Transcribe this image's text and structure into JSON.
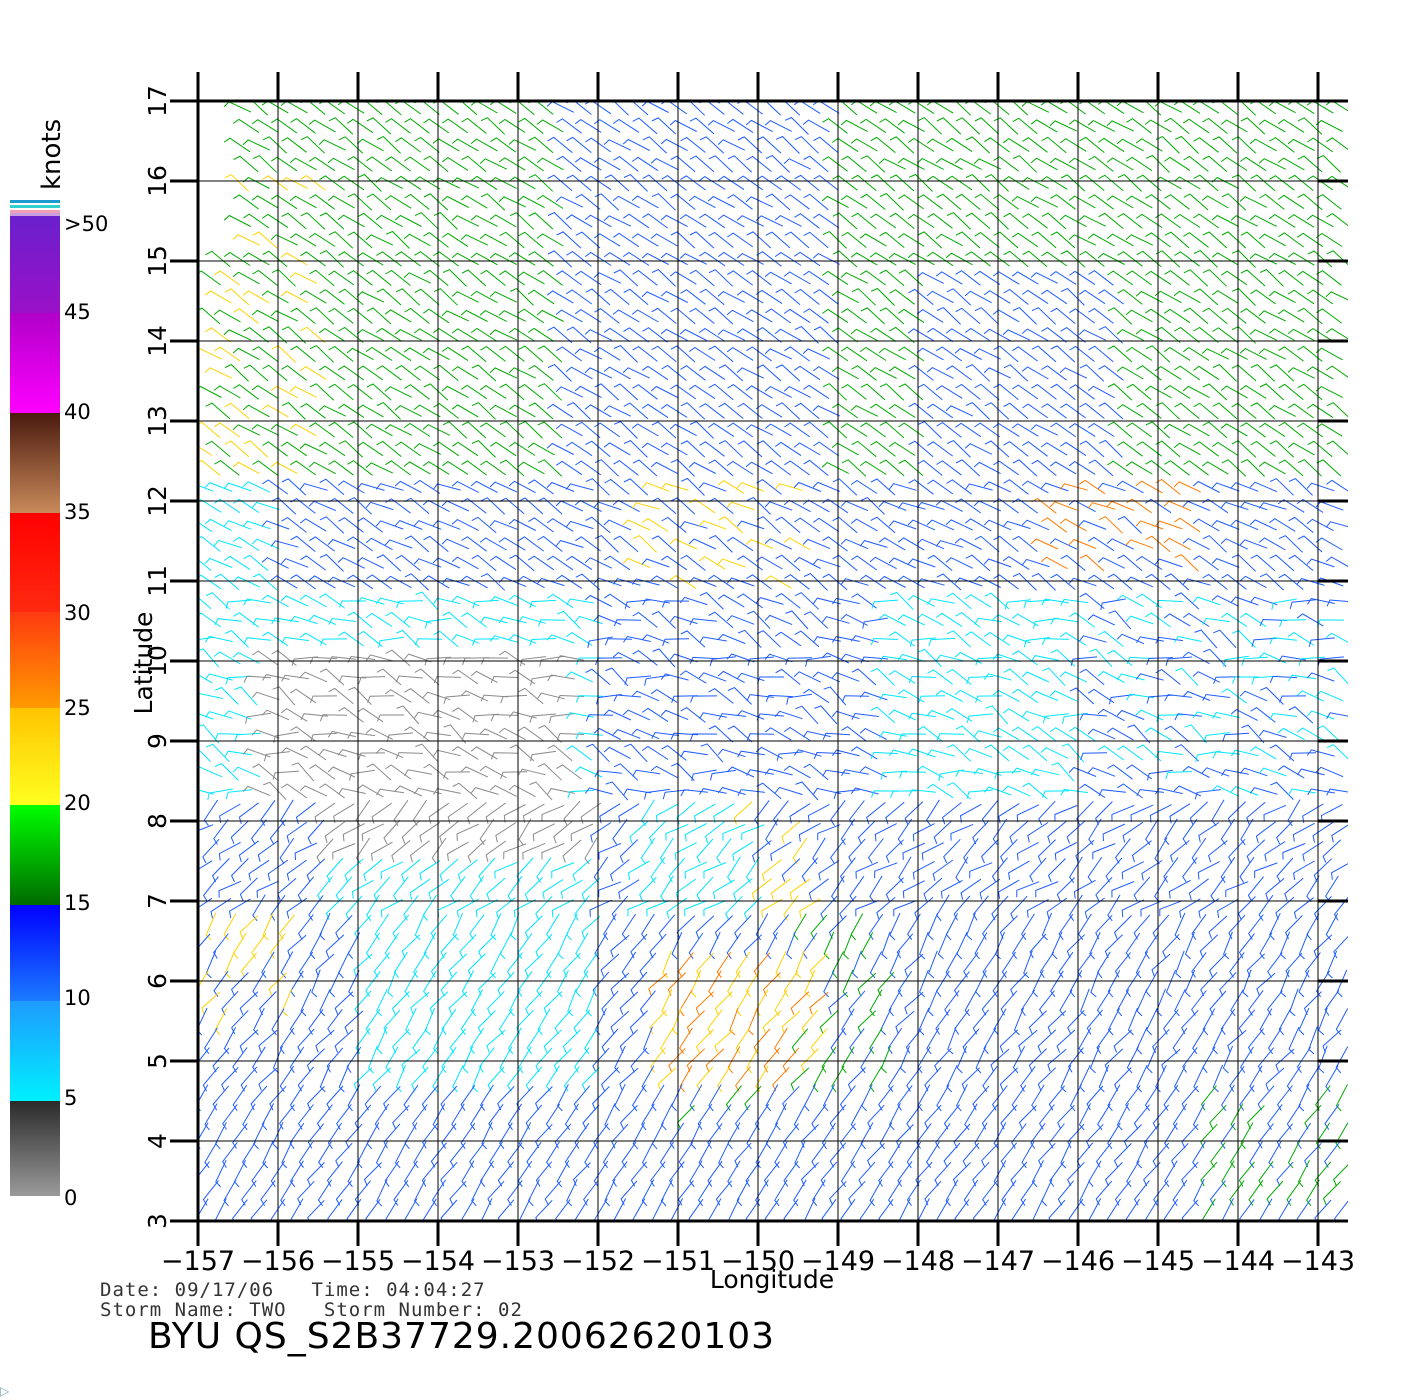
{
  "map": {
    "region": {
      "lon_min": -157,
      "lon_max": -143,
      "lat_min": 3,
      "lat_max": 17
    },
    "xlabel": "Longitude",
    "ylabel": "Latitude",
    "x_ticks": [
      "-157",
      "-156",
      "-155",
      "-154",
      "-153",
      "-152",
      "-151",
      "-150",
      "-149",
      "-148",
      "-147",
      "-146",
      "-145",
      "-144",
      "-143"
    ],
    "y_ticks": [
      "3",
      "4",
      "5",
      "6",
      "7",
      "8",
      "9",
      "10",
      "11",
      "12",
      "13",
      "14",
      "15",
      "16",
      "17"
    ],
    "grid": true,
    "layer": "wind barbs (knots)"
  },
  "colorbar": {
    "title": "knots",
    "labels": [
      "0",
      "5",
      "10",
      "15",
      "20",
      "25",
      "30",
      "35",
      "40",
      "45",
      ">50"
    ],
    "colors": {
      "0-5": "#8a8a8a",
      "5-10": "#00e5ff",
      "10-15": "#1e5cff",
      "15-20": "#00aa00",
      "20-25": "#ffd200",
      "25-30": "#ff7a00",
      "30-35": "#ff2a10",
      "35-40": "#8a4a2a",
      "40-45": "#ff20ff",
      "45-50": "#7a22cc"
    }
  },
  "meta": {
    "line1": "Date: 09/17/06   Time: 04:04:27",
    "line2": "Storm Name: TWO   Storm Number: 02"
  },
  "product_title": "BYU QS_S2B37729.20062620103",
  "corner_glyph": "▷"
}
